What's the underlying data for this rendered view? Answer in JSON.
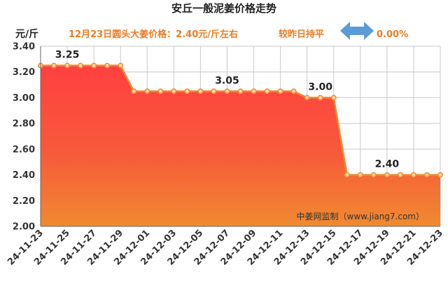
{
  "chart_data": {
    "type": "area",
    "title": "安丘一般泥姜价格走势",
    "ylabel": "元/斤",
    "subtitle": {
      "summary": "12月23日圆头大姜价格：2.40元/斤左右",
      "compare": "较昨日持平",
      "change": "0.00%"
    },
    "ylim": [
      2.0,
      3.4
    ],
    "yticks": [
      "2.00",
      "2.20",
      "2.40",
      "2.60",
      "2.80",
      "3.00",
      "3.20",
      "3.40"
    ],
    "grid": true,
    "x_labels": [
      "24-11-23",
      "24-11-25",
      "24-11-27",
      "24-11-29",
      "24-12-01",
      "24-12-03",
      "24-12-05",
      "24-12-07",
      "24-12-09",
      "24-12-11",
      "24-12-13",
      "24-12-15",
      "24-12-17",
      "24-12-19",
      "24-12-21",
      "24-12-23"
    ],
    "series": [
      {
        "x": [
          "24-11-23",
          "24-11-24",
          "24-11-25",
          "24-11-26",
          "24-11-27",
          "24-11-28",
          "24-11-29",
          "24-11-30",
          "24-12-01",
          "24-12-02",
          "24-12-03",
          "24-12-04",
          "24-12-05",
          "24-12-06",
          "24-12-07",
          "24-12-08",
          "24-12-09",
          "24-12-10",
          "24-12-11",
          "24-12-12",
          "24-12-13",
          "24-12-14",
          "24-12-15",
          "24-12-16",
          "24-12-17",
          "24-12-18",
          "24-12-19",
          "24-12-20",
          "24-12-21",
          "24-12-22",
          "24-12-23"
        ],
        "values": [
          3.25,
          3.25,
          3.25,
          3.25,
          3.25,
          3.25,
          3.25,
          3.05,
          3.05,
          3.05,
          3.05,
          3.05,
          3.05,
          3.05,
          3.05,
          3.05,
          3.05,
          3.05,
          3.05,
          3.05,
          3.0,
          3.0,
          3.0,
          2.4,
          2.4,
          2.4,
          2.4,
          2.4,
          2.4,
          2.4,
          2.4
        ]
      }
    ],
    "annotations": [
      {
        "text": "3.25",
        "x": "24-11-25",
        "y": 3.25
      },
      {
        "text": "3.05",
        "x": "24-12-07",
        "y": 3.05
      },
      {
        "text": "3.00",
        "x": "24-12-14",
        "y": 3.0
      },
      {
        "text": "2.40",
        "x": "24-12-19",
        "y": 2.4
      }
    ],
    "watermark": "中姜网监制（www.jiang7.com）",
    "colors": {
      "line": "#f08a30",
      "marker_fill": "#f8d8a8",
      "area_top": "#ff4040",
      "area_bottom": "#f08a30",
      "compare_arrow": "#5b9bd5"
    }
  }
}
